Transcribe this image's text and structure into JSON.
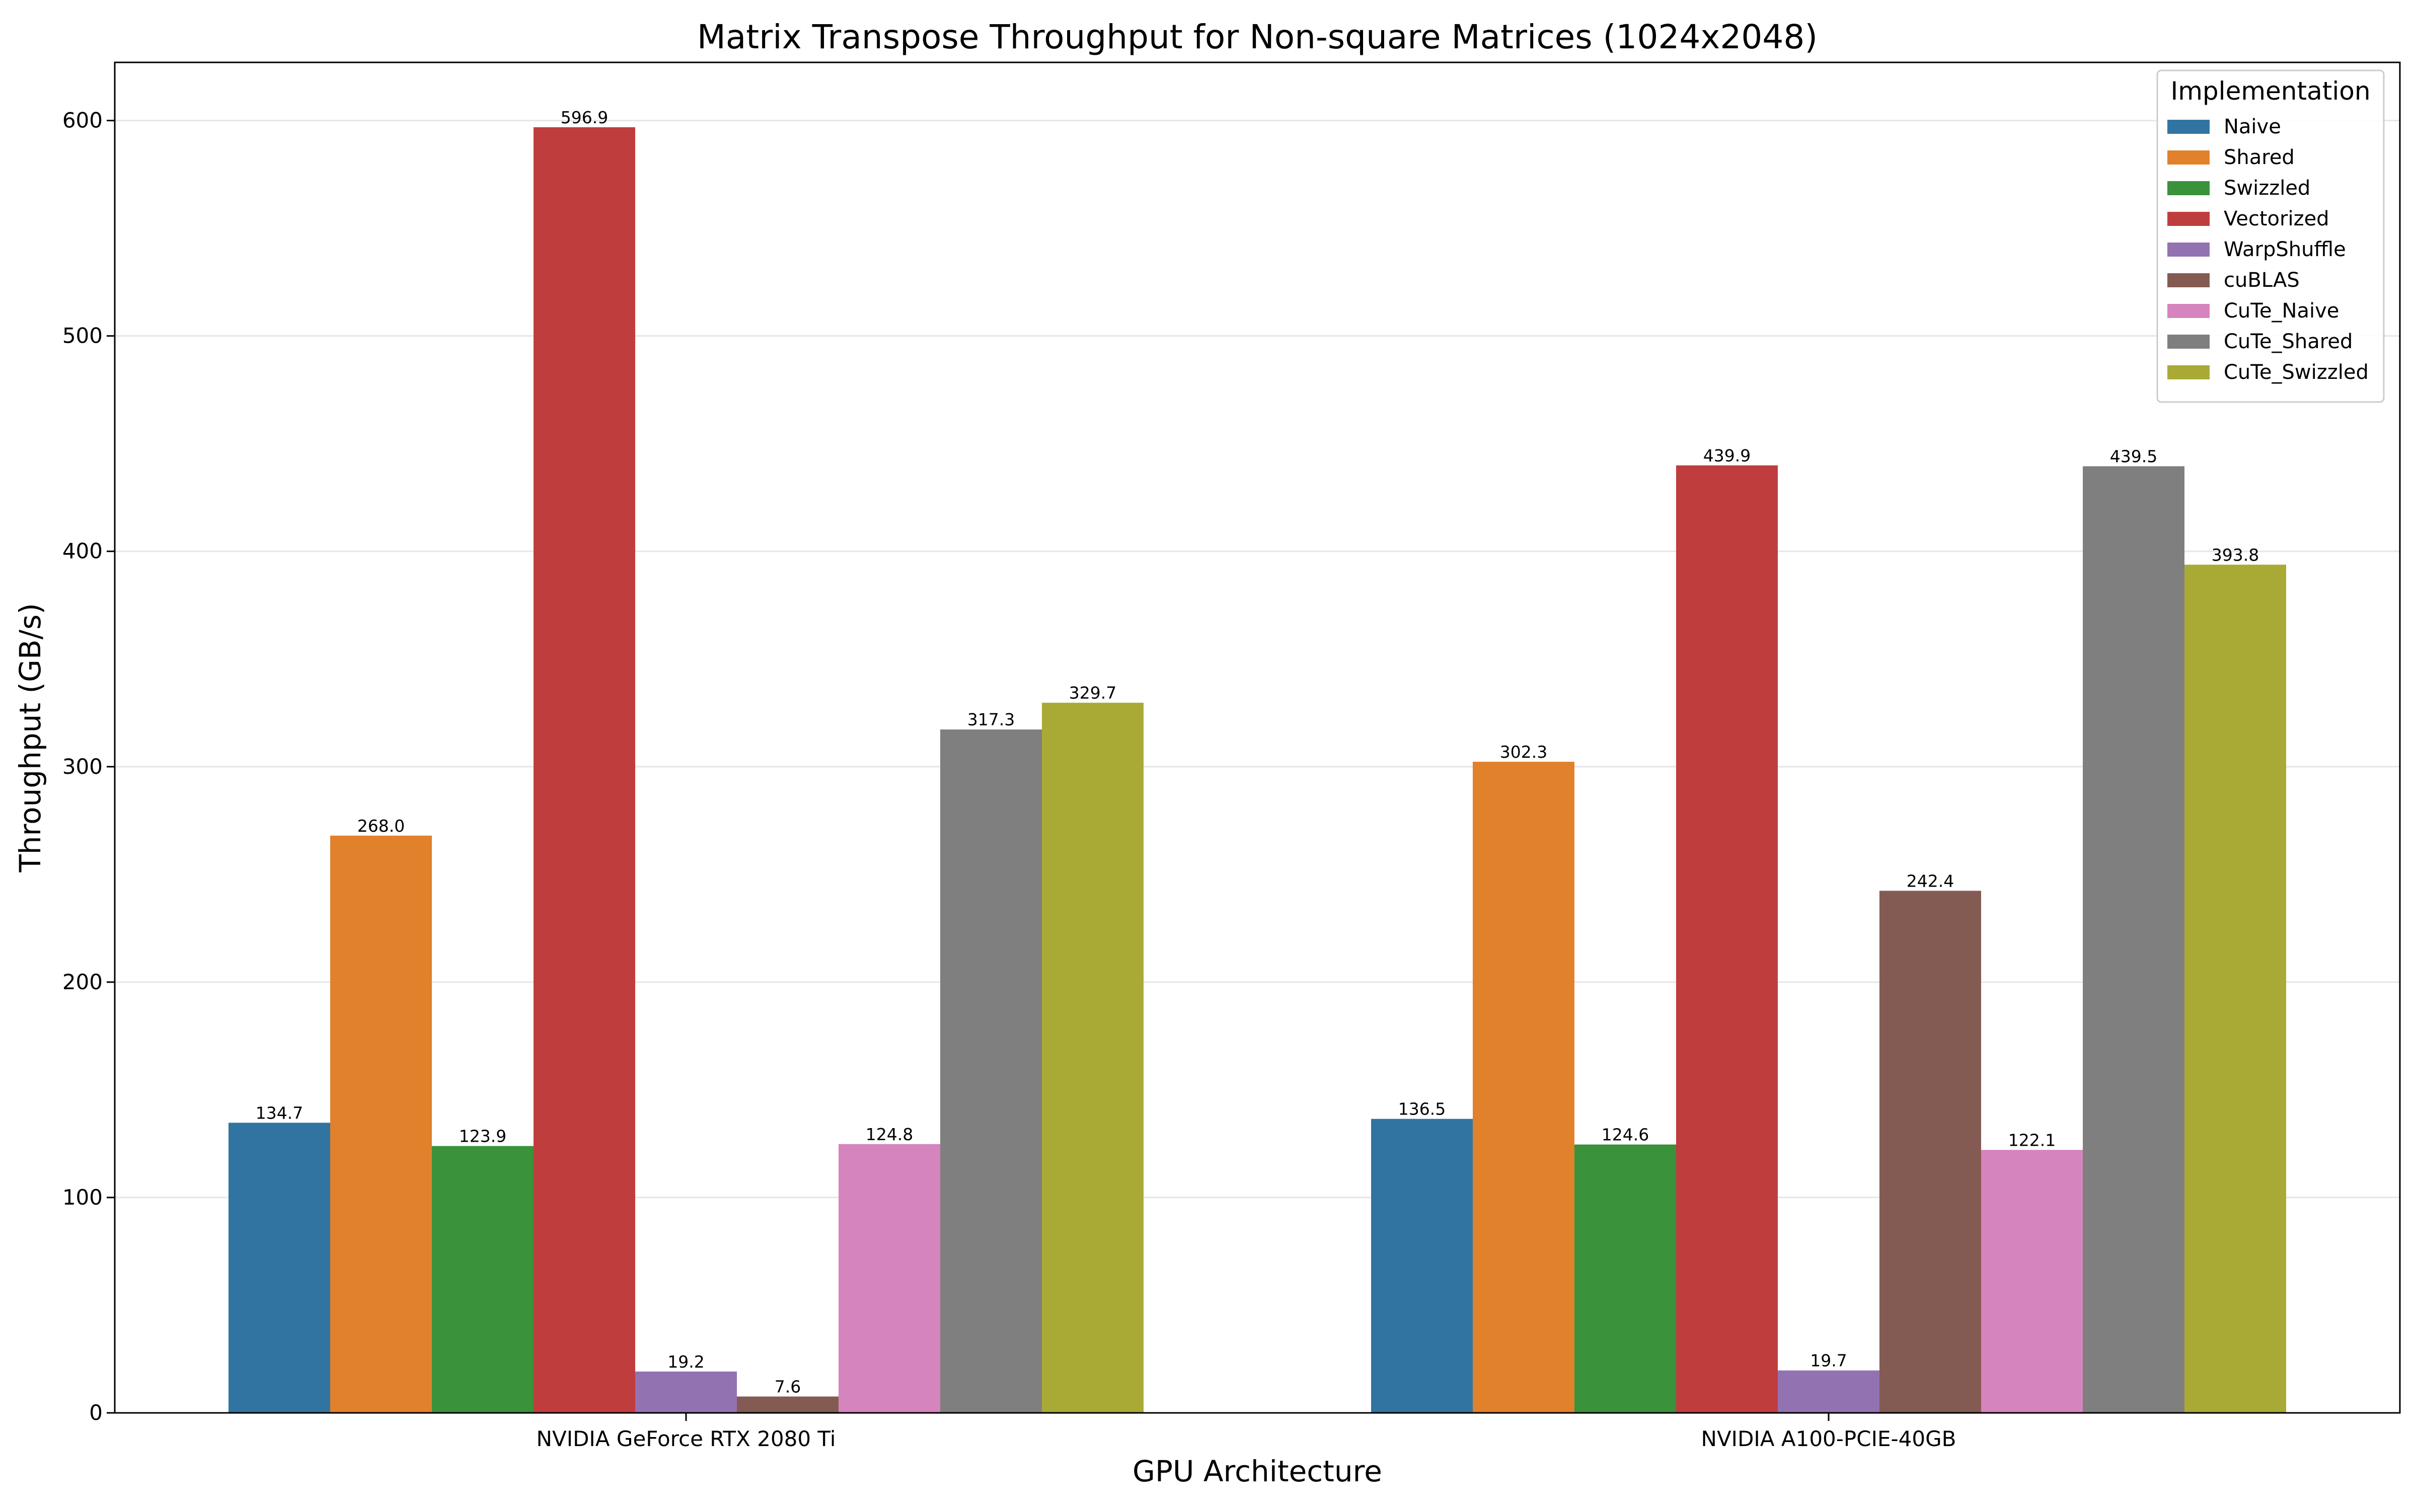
{
  "chart_data": {
    "type": "bar",
    "title": "Matrix Transpose Throughput for Non-square Matrices (1024x2048)",
    "xlabel": "GPU Architecture",
    "ylabel": "Throughput (GB/s)",
    "ylim": [
      0,
      627
    ],
    "yticks": [
      0,
      100,
      200,
      300,
      400,
      500,
      600
    ],
    "grid": "horizontal",
    "legend": {
      "title": "Implementation",
      "placement": "top-right"
    },
    "categories": [
      "NVIDIA GeForce RTX 2080 Ti",
      "NVIDIA A100-PCIE-40GB"
    ],
    "series": [
      {
        "name": "Naive",
        "color": "#3274a1",
        "values": [
          134.7,
          136.5
        ],
        "labels": [
          "134.7",
          "136.5"
        ]
      },
      {
        "name": "Shared",
        "color": "#e1812c",
        "values": [
          268.0,
          302.3
        ],
        "labels": [
          "268.0",
          "302.3"
        ]
      },
      {
        "name": "Swizzled",
        "color": "#3a923a",
        "values": [
          123.9,
          124.6
        ],
        "labels": [
          "123.9",
          "124.6"
        ]
      },
      {
        "name": "Vectorized",
        "color": "#c03d3e",
        "values": [
          596.9,
          439.9
        ],
        "labels": [
          "596.9",
          "439.9"
        ]
      },
      {
        "name": "WarpShuffle",
        "color": "#9372b2",
        "values": [
          19.2,
          19.7
        ],
        "labels": [
          "19.2",
          "19.7"
        ]
      },
      {
        "name": "cuBLAS",
        "color": "#845b53",
        "values": [
          7.6,
          242.4
        ],
        "labels": [
          "7.6",
          "242.4"
        ]
      },
      {
        "name": "CuTe_Naive",
        "color": "#d684bd",
        "values": [
          124.8,
          122.1
        ],
        "labels": [
          "124.8",
          "122.1"
        ]
      },
      {
        "name": "CuTe_Shared",
        "color": "#7f7f7f",
        "values": [
          317.3,
          439.5
        ],
        "labels": [
          "317.3",
          "439.5"
        ]
      },
      {
        "name": "CuTe_Swizzled",
        "color": "#a9aa35",
        "values": [
          329.7,
          393.8
        ],
        "labels": [
          "329.7",
          "393.8"
        ]
      }
    ]
  }
}
